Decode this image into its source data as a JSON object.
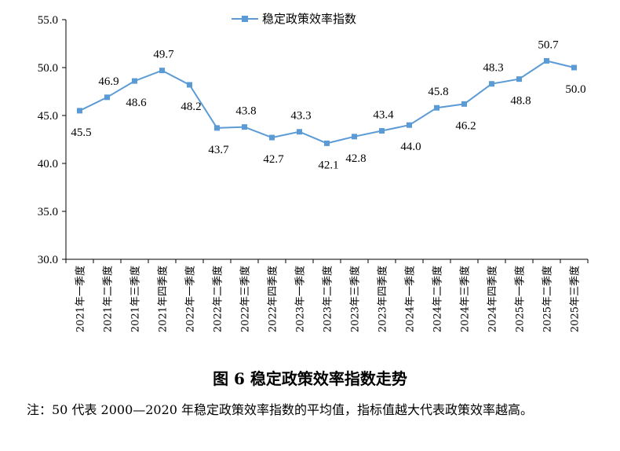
{
  "chart_data": {
    "type": "line",
    "legend": "稳定政策效率指数",
    "legend_position": "top-center",
    "categories": [
      "2021年一季度",
      "2021年二季度",
      "2021年三季度",
      "2021年四季度",
      "2022年一季度",
      "2022年二季度",
      "2022年三季度",
      "2022年四季度",
      "2023年一季度",
      "2023年二季度",
      "2023年三季度",
      "2023年四季度",
      "2024年一季度",
      "2024年二季度",
      "2024年三季度",
      "2024年四季度",
      "2025年一季度",
      "2025年二季度",
      "2025年三季度"
    ],
    "series": [
      {
        "name": "稳定政策效率指数",
        "values": [
          45.5,
          46.9,
          48.6,
          49.7,
          48.2,
          43.7,
          43.8,
          42.7,
          43.3,
          42.1,
          42.8,
          43.4,
          44.0,
          45.8,
          46.2,
          48.3,
          48.8,
          50.7,
          50.0
        ],
        "labels": [
          "45.5",
          "46.9",
          "48.6",
          "49.7",
          "48.2",
          "43.7",
          "43.8",
          "42.7",
          "43.3",
          "42.1",
          "42.8",
          "43.4",
          "44.0",
          "45.8",
          "46.2",
          "48.3",
          "48.8",
          "50.7",
          "50.0"
        ]
      }
    ],
    "yticks": [
      "30.0",
      "35.0",
      "40.0",
      "45.0",
      "50.0",
      "55.0"
    ],
    "ylim": [
      30,
      55
    ],
    "grid": false,
    "color": "#5B9BD5"
  },
  "caption": "图 6  稳定政策效率指数走势",
  "note": "注：50 代表 2000—2020 年稳定政策效率指数的平均值，指标值越大代表政策效率越高。"
}
